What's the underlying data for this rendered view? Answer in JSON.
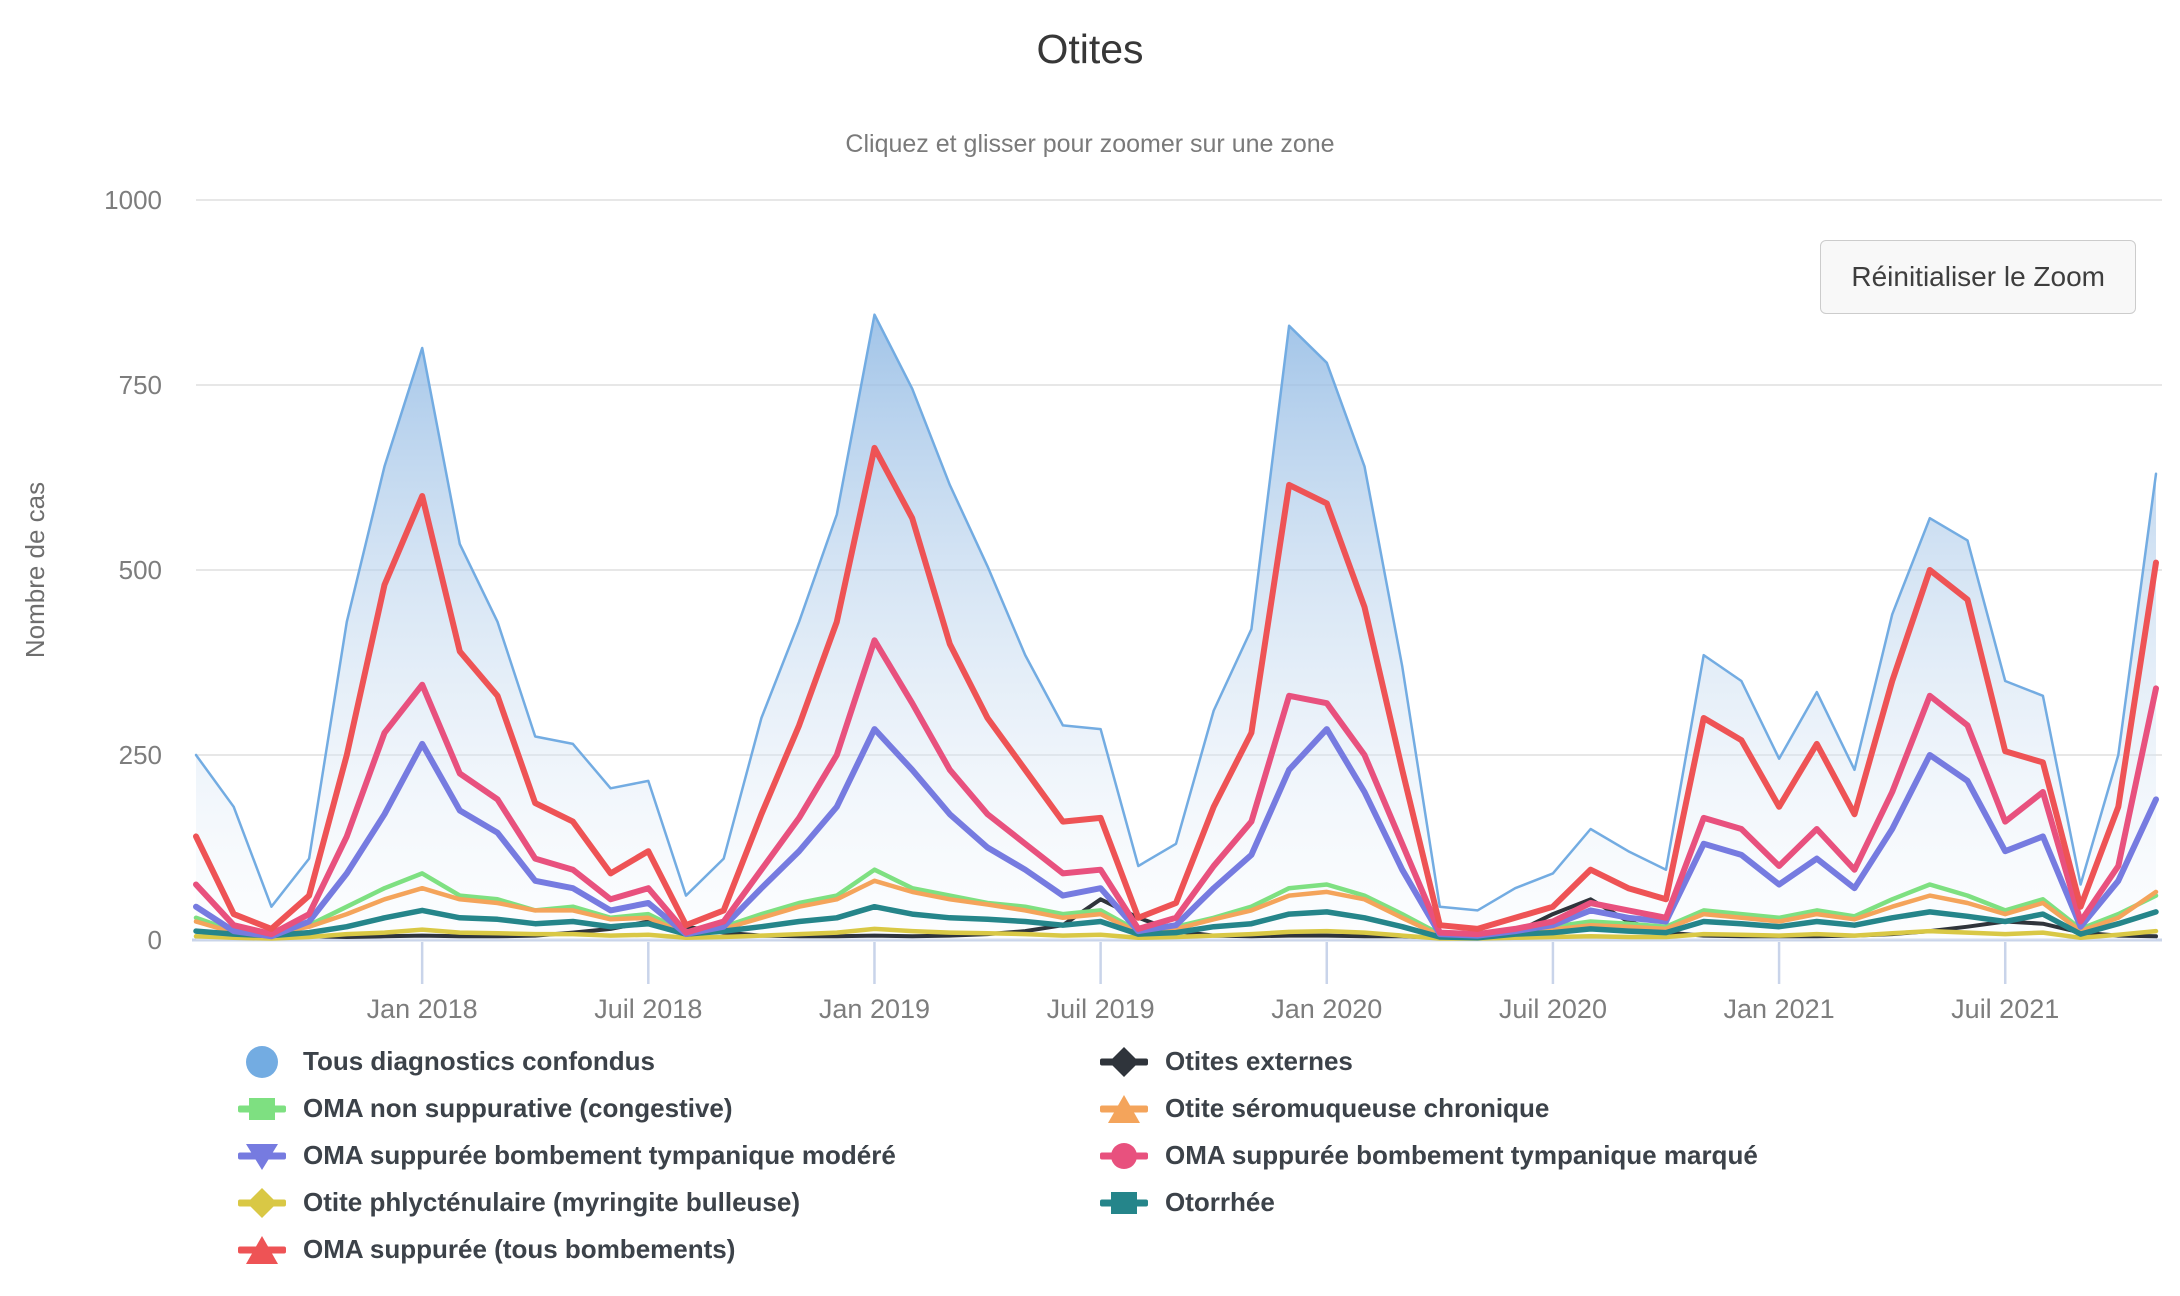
{
  "header": {
    "title": "Otites",
    "subtitle": "Cliquez et glisser pour zoomer sur une zone"
  },
  "toolbar": {
    "reset_zoom_label": "Réinitialiser le Zoom"
  },
  "y_axis": {
    "title": "Nombre de cas",
    "ticks": [
      0,
      250,
      500,
      750,
      1000
    ]
  },
  "x_axis": {
    "ticks": [
      {
        "label": "Jan 2018",
        "index": 6
      },
      {
        "label": "Juil 2018",
        "index": 12
      },
      {
        "label": "Jan 2019",
        "index": 18
      },
      {
        "label": "Juil 2019",
        "index": 24
      },
      {
        "label": "Jan 2020",
        "index": 30
      },
      {
        "label": "Juil 2020",
        "index": 36
      },
      {
        "label": "Jan 2021",
        "index": 42
      },
      {
        "label": "Juil 2021",
        "index": 48
      }
    ]
  },
  "colors": {
    "gridline": "#e7e7e7",
    "axis_line": "#c9d4ea",
    "tick_text": "#7d7d7d",
    "axis_title_text": "#6e6e6e",
    "legend_text": "#3c4249"
  },
  "chart_data": {
    "type": "line",
    "title": "Otites",
    "ylabel": "Nombre de cas",
    "ylim": [
      0,
      1000
    ],
    "grid": "horizontal-only",
    "legend_position": "bottom",
    "months": [
      "2017-07",
      "2017-08",
      "2017-09",
      "2017-10",
      "2017-11",
      "2017-12",
      "2018-01",
      "2018-02",
      "2018-03",
      "2018-04",
      "2018-05",
      "2018-06",
      "2018-07",
      "2018-08",
      "2018-09",
      "2018-10",
      "2018-11",
      "2018-12",
      "2019-01",
      "2019-02",
      "2019-03",
      "2019-04",
      "2019-05",
      "2019-06",
      "2019-07",
      "2019-08",
      "2019-09",
      "2019-10",
      "2019-11",
      "2019-12",
      "2020-01",
      "2020-02",
      "2020-03",
      "2020-04",
      "2020-05",
      "2020-06",
      "2020-07",
      "2020-08",
      "2020-09",
      "2020-10",
      "2020-11",
      "2020-12",
      "2021-01",
      "2021-02",
      "2021-03",
      "2021-04",
      "2021-05",
      "2021-06",
      "2021-07",
      "2021-08",
      "2021-09",
      "2021-10",
      "2021-11"
    ],
    "area_gradient": {
      "top": "#79abdf",
      "mid": "#b7d1ec",
      "bottom": "#f4f8fc"
    },
    "series": [
      {
        "id": "tous",
        "label": "Tous diagnostics confondus",
        "color": "#73ace2",
        "marker": "circle-large",
        "area": true,
        "line_width": 2.5,
        "values": [
          250,
          180,
          45,
          110,
          430,
          640,
          800,
          535,
          430,
          275,
          265,
          205,
          215,
          60,
          110,
          300,
          430,
          575,
          845,
          745,
          615,
          505,
          385,
          290,
          285,
          100,
          130,
          310,
          420,
          830,
          780,
          640,
          370,
          45,
          40,
          70,
          90,
          150,
          120,
          95,
          385,
          350,
          245,
          335,
          230,
          440,
          570,
          540,
          350,
          330,
          75,
          250,
          630
        ]
      },
      {
        "id": "externes",
        "label": "Otites externes",
        "color": "#2f343b",
        "marker": "diamond",
        "area": false,
        "line_width": 4,
        "values": [
          25,
          15,
          8,
          5,
          4,
          5,
          6,
          5,
          5,
          6,
          10,
          15,
          25,
          18,
          10,
          6,
          5,
          5,
          6,
          5,
          6,
          8,
          12,
          20,
          55,
          30,
          12,
          6,
          5,
          6,
          6,
          5,
          5,
          3,
          4,
          10,
          35,
          55,
          25,
          10,
          6,
          5,
          5,
          5,
          6,
          8,
          12,
          18,
          25,
          22,
          10,
          6,
          5
        ]
      },
      {
        "id": "oma-non-suppurative",
        "label": "OMA non suppurative (congestive)",
        "color": "#7ee081",
        "marker": "square",
        "area": false,
        "line_width": 4.5,
        "values": [
          30,
          12,
          10,
          20,
          45,
          70,
          90,
          60,
          55,
          40,
          45,
          30,
          35,
          10,
          18,
          35,
          50,
          60,
          95,
          70,
          60,
          50,
          45,
          35,
          40,
          12,
          18,
          30,
          45,
          70,
          75,
          60,
          35,
          8,
          6,
          12,
          18,
          25,
          22,
          18,
          40,
          35,
          30,
          40,
          32,
          55,
          75,
          60,
          40,
          55,
          15,
          35,
          60
        ]
      },
      {
        "id": "seromuqueuse",
        "label": "Otite séromuqueuse chronique",
        "color": "#f4a45b",
        "marker": "triangle-up",
        "area": false,
        "line_width": 4.5,
        "values": [
          25,
          10,
          8,
          18,
          35,
          55,
          70,
          55,
          50,
          40,
          40,
          28,
          30,
          8,
          15,
          30,
          45,
          55,
          80,
          65,
          55,
          48,
          40,
          30,
          35,
          10,
          15,
          28,
          40,
          60,
          65,
          55,
          30,
          6,
          5,
          10,
          14,
          20,
          18,
          15,
          35,
          30,
          25,
          35,
          28,
          45,
          60,
          50,
          35,
          50,
          12,
          30,
          65
        ]
      },
      {
        "id": "phlyctenulaire",
        "label": "Otite phlycténulaire (myringite bulleuse)",
        "color": "#d9c845",
        "marker": "diamond",
        "area": false,
        "line_width": 4.5,
        "values": [
          5,
          3,
          2,
          4,
          8,
          10,
          14,
          10,
          9,
          8,
          8,
          6,
          7,
          3,
          4,
          6,
          8,
          10,
          15,
          12,
          10,
          9,
          8,
          6,
          7,
          3,
          4,
          6,
          8,
          11,
          12,
          10,
          6,
          2,
          2,
          3,
          4,
          5,
          4,
          4,
          8,
          7,
          6,
          8,
          6,
          9,
          12,
          10,
          8,
          10,
          3,
          7,
          12
        ]
      },
      {
        "id": "otorrhee",
        "label": "Otorrhée",
        "color": "#25858a",
        "marker": "square",
        "area": false,
        "line_width": 5.5,
        "values": [
          12,
          8,
          6,
          10,
          18,
          30,
          40,
          30,
          28,
          22,
          25,
          18,
          22,
          8,
          12,
          18,
          25,
          30,
          45,
          35,
          30,
          28,
          25,
          20,
          25,
          8,
          10,
          18,
          22,
          35,
          38,
          30,
          18,
          4,
          3,
          8,
          10,
          15,
          12,
          10,
          25,
          22,
          18,
          25,
          20,
          30,
          38,
          32,
          25,
          35,
          8,
          22,
          38
        ]
      },
      {
        "id": "oma-modere",
        "label": "OMA suppurée bombement tympanique modéré",
        "color": "#767be0",
        "marker": "triangle-down",
        "area": false,
        "line_width": 6,
        "values": [
          45,
          12,
          5,
          25,
          90,
          170,
          265,
          175,
          145,
          80,
          70,
          40,
          50,
          8,
          18,
          70,
          120,
          180,
          285,
          230,
          170,
          125,
          95,
          60,
          70,
          12,
          20,
          70,
          115,
          230,
          285,
          200,
          95,
          8,
          6,
          12,
          20,
          40,
          30,
          25,
          130,
          115,
          75,
          110,
          70,
          150,
          250,
          215,
          120,
          140,
          18,
          80,
          190
        ]
      },
      {
        "id": "oma-marque",
        "label": "OMA suppurée bombement tympanique marqué",
        "color": "#e8517e",
        "marker": "circle",
        "area": false,
        "line_width": 6,
        "values": [
          75,
          20,
          8,
          35,
          140,
          280,
          345,
          225,
          190,
          110,
          95,
          55,
          70,
          10,
          25,
          95,
          165,
          250,
          405,
          320,
          230,
          170,
          130,
          90,
          95,
          15,
          30,
          100,
          160,
          330,
          320,
          250,
          130,
          10,
          8,
          15,
          25,
          50,
          40,
          30,
          165,
          150,
          100,
          150,
          95,
          200,
          330,
          290,
          160,
          200,
          25,
          100,
          340
        ]
      },
      {
        "id": "oma-suppuree",
        "label": "OMA suppurée (tous bombements)",
        "color": "#ee5355",
        "marker": "triangle-up",
        "area": false,
        "line_width": 6,
        "values": [
          140,
          35,
          15,
          60,
          250,
          480,
          600,
          390,
          330,
          185,
          160,
          90,
          120,
          20,
          40,
          170,
          290,
          430,
          665,
          570,
          400,
          300,
          230,
          160,
          165,
          30,
          50,
          180,
          280,
          615,
          590,
          450,
          230,
          20,
          15,
          30,
          45,
          95,
          70,
          55,
          300,
          270,
          180,
          265,
          170,
          350,
          500,
          460,
          255,
          240,
          45,
          180,
          510
        ]
      }
    ],
    "legend_order": [
      "tous",
      "externes",
      "oma-non-suppurative",
      "seromuqueuse",
      "oma-modere",
      "oma-marque",
      "phlyctenulaire",
      "otorrhee",
      "oma-suppuree"
    ]
  }
}
